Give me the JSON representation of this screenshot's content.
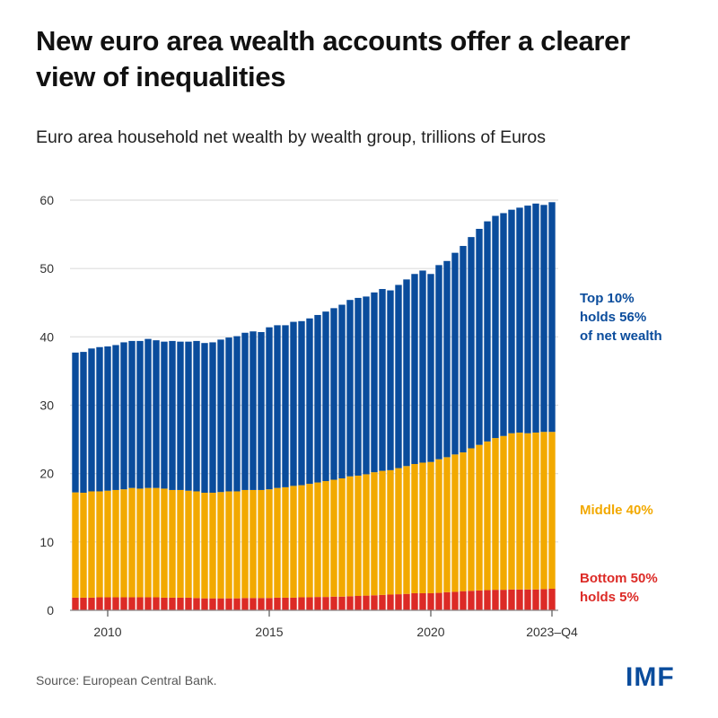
{
  "title": "New euro area wealth accounts offer a clearer view of inequalities",
  "subtitle": "Euro area household net wealth by wealth group, trillions of Euros",
  "source": "Source: European Central Bank.",
  "logo": "IMF",
  "colors": {
    "top": "#0a4c9c",
    "middle": "#f2a900",
    "bottom": "#dc2a26",
    "grid": "#dddddd"
  },
  "annotations": {
    "top": [
      "Top 10%",
      "holds 56%",
      "of net wealth"
    ],
    "middle": [
      "Middle 40%"
    ],
    "bottom": [
      "Bottom 50%",
      "holds 5%"
    ]
  },
  "chart_data": {
    "type": "bar",
    "stacked": true,
    "title": "New euro area wealth accounts offer a clearer view of inequalities",
    "subtitle": "Euro area household net wealth by wealth group, trillions of Euros",
    "ylim": [
      0,
      60
    ],
    "yticks": [
      0,
      10,
      20,
      30,
      40,
      50,
      60
    ],
    "xtick_labels": [
      {
        "at": "2010-Q1",
        "label": "2010"
      },
      {
        "at": "2015-Q1",
        "label": "2015"
      },
      {
        "at": "2020-Q1",
        "label": "2020"
      },
      {
        "at": "2023-Q4",
        "label": "2023–Q4"
      }
    ],
    "grid": true,
    "categories": [
      "2009-Q1",
      "2009-Q2",
      "2009-Q3",
      "2009-Q4",
      "2010-Q1",
      "2010-Q2",
      "2010-Q3",
      "2010-Q4",
      "2011-Q1",
      "2011-Q2",
      "2011-Q3",
      "2011-Q4",
      "2012-Q1",
      "2012-Q2",
      "2012-Q3",
      "2012-Q4",
      "2013-Q1",
      "2013-Q2",
      "2013-Q3",
      "2013-Q4",
      "2014-Q1",
      "2014-Q2",
      "2014-Q3",
      "2014-Q4",
      "2015-Q1",
      "2015-Q2",
      "2015-Q3",
      "2015-Q4",
      "2016-Q1",
      "2016-Q2",
      "2016-Q3",
      "2016-Q4",
      "2017-Q1",
      "2017-Q2",
      "2017-Q3",
      "2017-Q4",
      "2018-Q1",
      "2018-Q2",
      "2018-Q3",
      "2018-Q4",
      "2019-Q1",
      "2019-Q2",
      "2019-Q3",
      "2019-Q4",
      "2020-Q1",
      "2020-Q2",
      "2020-Q3",
      "2020-Q4",
      "2021-Q1",
      "2021-Q2",
      "2021-Q3",
      "2021-Q4",
      "2022-Q1",
      "2022-Q2",
      "2022-Q3",
      "2022-Q4",
      "2023-Q1",
      "2023-Q2",
      "2023-Q3",
      "2023-Q4"
    ],
    "series": [
      {
        "name": "Bottom 50%",
        "color": "#dc2a26",
        "values": [
          1.85,
          1.85,
          1.85,
          1.9,
          1.9,
          1.9,
          1.9,
          1.9,
          1.9,
          1.9,
          1.9,
          1.85,
          1.85,
          1.85,
          1.85,
          1.8,
          1.75,
          1.75,
          1.75,
          1.75,
          1.75,
          1.8,
          1.8,
          1.8,
          1.8,
          1.85,
          1.85,
          1.85,
          1.9,
          1.9,
          1.95,
          1.95,
          2.0,
          2.0,
          2.05,
          2.1,
          2.15,
          2.2,
          2.25,
          2.3,
          2.35,
          2.4,
          2.5,
          2.5,
          2.5,
          2.55,
          2.65,
          2.7,
          2.8,
          2.85,
          2.9,
          2.95,
          3.0,
          3.0,
          3.05,
          3.05,
          3.05,
          3.05,
          3.1,
          3.15
        ]
      },
      {
        "name": "Middle 40%",
        "color": "#f2a900",
        "values": [
          15.4,
          15.35,
          15.55,
          15.5,
          15.6,
          15.7,
          15.8,
          16.0,
          15.9,
          16.0,
          16.0,
          15.95,
          15.75,
          15.75,
          15.65,
          15.6,
          15.45,
          15.45,
          15.55,
          15.65,
          15.65,
          15.8,
          15.8,
          15.8,
          15.9,
          16.05,
          16.15,
          16.35,
          16.4,
          16.6,
          16.75,
          16.95,
          17.1,
          17.3,
          17.55,
          17.6,
          17.75,
          18.0,
          18.15,
          18.2,
          18.45,
          18.7,
          18.9,
          19.1,
          19.2,
          19.55,
          19.75,
          20.1,
          20.3,
          20.85,
          21.3,
          21.75,
          22.2,
          22.5,
          22.85,
          22.95,
          22.85,
          22.95,
          23.0,
          22.95
        ]
      },
      {
        "name": "Top 10%",
        "color": "#0a4c9c",
        "values": [
          20.45,
          20.6,
          20.9,
          21.1,
          21.1,
          21.2,
          21.5,
          21.5,
          21.6,
          21.8,
          21.6,
          21.5,
          21.8,
          21.7,
          21.8,
          22.0,
          21.9,
          22.0,
          22.3,
          22.5,
          22.7,
          23.0,
          23.2,
          23.1,
          23.7,
          23.8,
          23.7,
          24.0,
          24.0,
          24.2,
          24.5,
          24.8,
          25.1,
          25.4,
          25.8,
          26.0,
          26.0,
          26.3,
          26.6,
          26.3,
          26.8,
          27.3,
          27.8,
          28.1,
          27.5,
          28.4,
          28.7,
          29.5,
          30.2,
          30.9,
          31.6,
          32.2,
          32.5,
          32.6,
          32.7,
          32.9,
          33.3,
          33.5,
          33.2,
          33.6
        ]
      }
    ]
  }
}
